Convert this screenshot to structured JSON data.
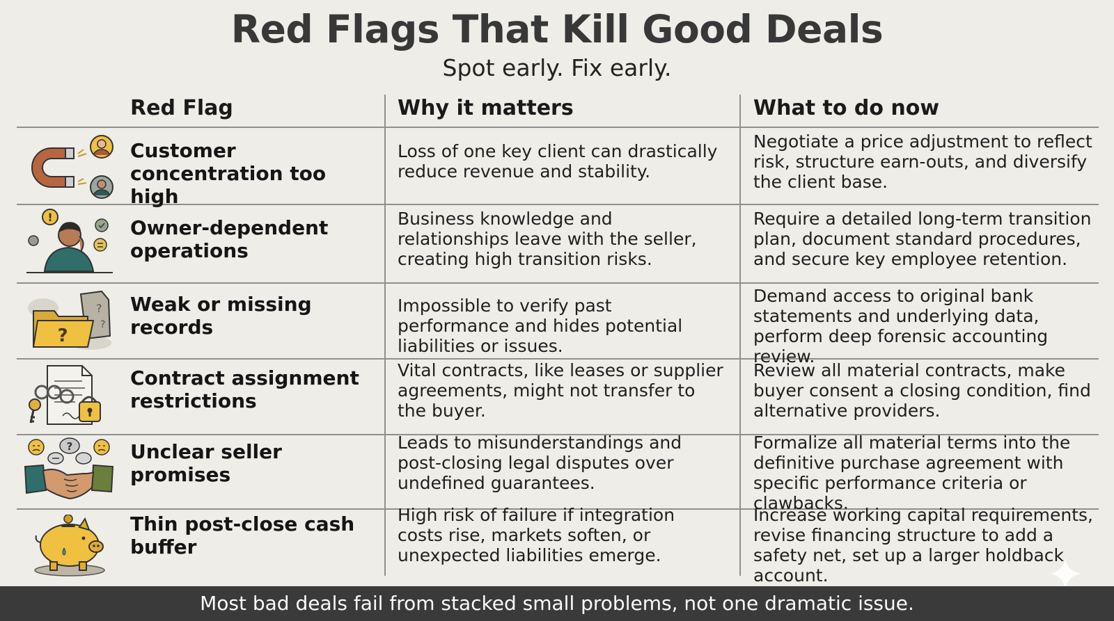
{
  "title": "Red Flags That Kill Good Deals",
  "subtitle": "Spot early. Fix early.",
  "columns": [
    "Red Flag",
    "Why it matters",
    "What to do now"
  ],
  "rows": [
    {
      "icon": "magnet-icon",
      "flag": "Customer concentration too high",
      "why": "Loss of one key client can drastically reduce revenue and stability.",
      "todo": "Negotiate a price adjustment to reflect risk, structure earn-outs, and diversify the client base."
    },
    {
      "icon": "stressed-owner-icon",
      "flag": "Owner-dependent operations",
      "why": "Business knowledge and relationships leave with the seller, creating high transition risks.",
      "todo": "Require a detailed long-term transition plan, document standard procedures, and secure key employee retention."
    },
    {
      "icon": "missing-folder-icon",
      "flag": "Weak or missing records",
      "why": "Impossible to verify past performance and hides potential liabilities or issues.",
      "todo": "Demand access to original bank statements and underlying data, perform deep forensic accounting review."
    },
    {
      "icon": "locked-contract-icon",
      "flag": "Contract assignment restrictions",
      "why": "Vital contracts, like leases or supplier agreements, might not transfer to the buyer.",
      "todo": "Review all material contracts, make buyer consent a closing condition, find alternative providers."
    },
    {
      "icon": "handshake-icon",
      "flag": "Unclear seller promises",
      "why": "Leads to misunderstandings and post-closing legal disputes over undefined guarantees.",
      "todo": "Formalize all material terms into the definitive purchase agreement with specific performance criteria or clawbacks."
    },
    {
      "icon": "piggy-bank-icon",
      "flag": "Thin post-close cash buffer",
      "why": "High risk of failure if integration costs rise, markets soften, or unexpected liabilities emerge.",
      "todo": "Increase working capital requirements, revise financing structure to add a safety net, set up a larger holdback account."
    }
  ],
  "footer": "Most bad deals fail from stacked small problems, not one dramatic issue.",
  "colors": {
    "background": "#eeede8",
    "footer_bg": "#3a3a3a",
    "footer_text": "#fafafa",
    "rule": "#8f8f8f",
    "title": "#383838"
  }
}
